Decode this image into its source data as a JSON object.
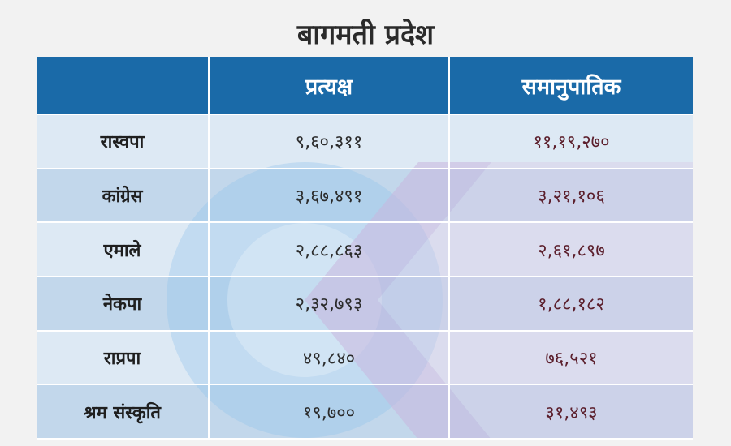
{
  "title": "बागमती प्रदेश",
  "chart_data": {
    "type": "table",
    "columns": [
      "",
      "प्रत्यक्ष",
      "समानुपातिक"
    ],
    "rows": [
      {
        "party": "रास्वपा",
        "direct": "९,६०,३११",
        "proportional": "११,१९,२७०"
      },
      {
        "party": "कांग्रेस",
        "direct": "३,६७,४९१",
        "proportional": "३,२१,१०६"
      },
      {
        "party": "एमाले",
        "direct": "२,८८,८६३",
        "proportional": "२,६१,८९७"
      },
      {
        "party": "नेकपा",
        "direct": "२,३२,७९३",
        "proportional": "१,८८,१८२"
      },
      {
        "party": "राप्रपा",
        "direct": "४९,८४०",
        "proportional": "७६,५२१"
      },
      {
        "party": "श्रम संस्कृति",
        "direct": "१९,७००",
        "proportional": "३१,४९३"
      }
    ]
  },
  "colors": {
    "header": "#1a6aa8",
    "row_light": "#dde9f4",
    "row_dark": "#bcd4ea",
    "proportional_text": "#5b1e2b"
  }
}
